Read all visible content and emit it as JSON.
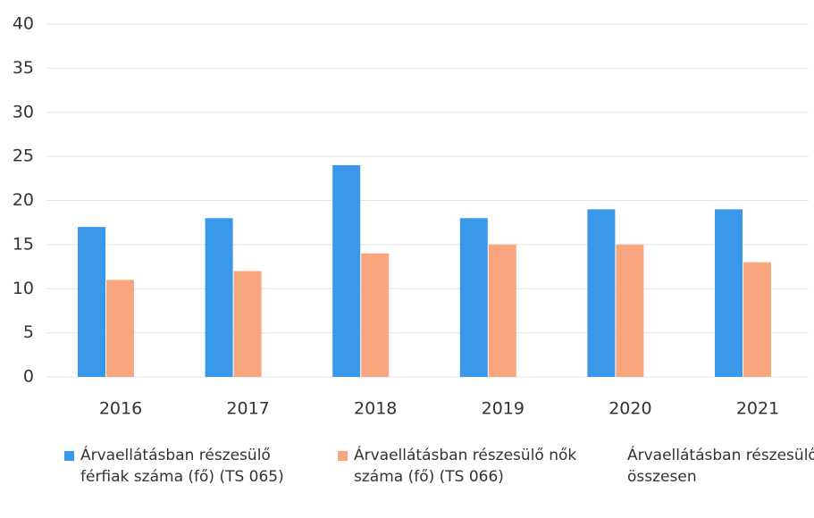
{
  "chart_data": {
    "type": "bar",
    "categories": [
      "2016",
      "2017",
      "2018",
      "2019",
      "2020",
      "2021"
    ],
    "series": [
      {
        "name": "Árvaellátásban részesülő férfiak száma (fő) (TS 065)",
        "color": "#3a98ea",
        "values": [
          17,
          18,
          24,
          18,
          19,
          19
        ]
      },
      {
        "name": "Árvaellátásban részesülő nők száma (fő) (TS 066)",
        "color": "#f9a67f",
        "values": [
          11,
          12,
          14,
          15,
          15,
          13
        ]
      },
      {
        "name": "Árvaellátásban részesülők összesen",
        "values": [
          null,
          null,
          null,
          null,
          null,
          null
        ]
      }
    ],
    "ylim": [
      0,
      40
    ],
    "yticks": [
      0,
      5,
      10,
      15,
      20,
      25,
      30,
      35,
      40
    ],
    "grid": true,
    "legend": "bottom"
  }
}
